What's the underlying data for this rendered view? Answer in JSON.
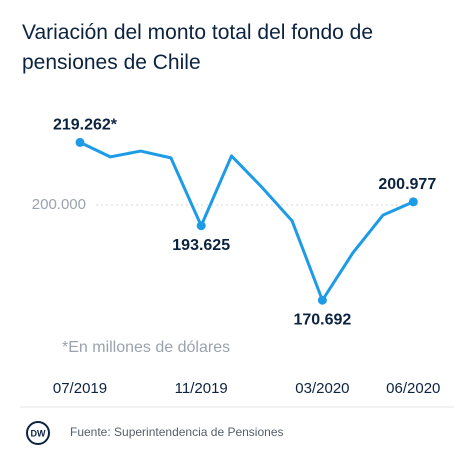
{
  "chart_data": {
    "type": "line",
    "title": "Variación del monto total del fondo de pensiones de Chile",
    "note": "*En millones de dólares",
    "source": "Fuente: Superintendencia de Pensiones",
    "categories": [
      "07/2019",
      null,
      null,
      null,
      "11/2019",
      null,
      null,
      null,
      "03/2020",
      null,
      null,
      "06/2020"
    ],
    "series": [
      {
        "color": "#1d9be6",
        "values": [
          219262,
          214800,
          216600,
          214500,
          193625,
          215100,
          205500,
          195100,
          170692,
          185200,
          196900,
          200977
        ],
        "value_labels": [
          "219.262*",
          null,
          null,
          null,
          "193.625",
          null,
          null,
          null,
          "170.692",
          null,
          null,
          "200.977"
        ]
      }
    ],
    "ylim": [
      165000,
      226000
    ],
    "yticks": [
      {
        "value": 200000,
        "label": "200.000"
      }
    ],
    "grid": true
  }
}
